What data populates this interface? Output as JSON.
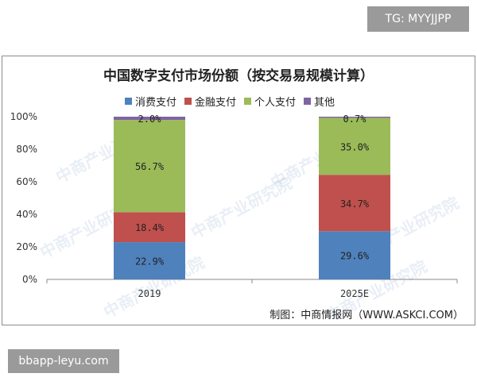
{
  "badges": {
    "top": "TG: MYYJJPP",
    "bottom": "bbapp-leyu.com"
  },
  "watermark_text": "中商产业研究院",
  "credit": "制图：中商情报网（WWW.ASKCI.COM）",
  "colors": {
    "mobile": "#4F81BD",
    "financial": "#C0504D",
    "personal": "#9BBB59",
    "other": "#8064A2"
  },
  "chart_data": {
    "type": "bar",
    "stacked": true,
    "percent": true,
    "title": "中国数字支付市场份额（按交易易规模计算）",
    "categories": [
      "2019",
      "2025E"
    ],
    "series": [
      {
        "name": "消费支付",
        "values": [
          22.9,
          29.6
        ],
        "labels": [
          "22.9%",
          "29.6%"
        ],
        "color": "#4F81BD"
      },
      {
        "name": "金融支付",
        "values": [
          18.4,
          34.7
        ],
        "labels": [
          "18.4%",
          "34.7%"
        ],
        "color": "#C0504D"
      },
      {
        "name": "个人支付",
        "values": [
          56.7,
          35.0
        ],
        "labels": [
          "56.7%",
          "35.0%"
        ],
        "color": "#9BBB59"
      },
      {
        "name": "其他",
        "values": [
          2.0,
          0.7
        ],
        "labels": [
          "2.0%",
          "0.7%"
        ],
        "color": "#8064A2"
      }
    ],
    "ylim": [
      0,
      100
    ],
    "yticks": [
      "0%",
      "20%",
      "40%",
      "60%",
      "80%",
      "100%"
    ],
    "legend": "top",
    "grid": false
  }
}
